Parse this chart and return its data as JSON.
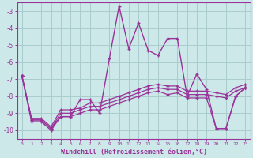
{
  "xlabel": "Windchill (Refroidissement éolien,°C)",
  "background_color": "#cce8e8",
  "grid_color": "#aacccc",
  "line_color": "#993399",
  "xlim": [
    -0.5,
    23.5
  ],
  "ylim": [
    -10.5,
    -2.5
  ],
  "yticks": [
    -10,
    -9,
    -8,
    -7,
    -6,
    -5,
    -4,
    -3
  ],
  "xticks": [
    0,
    1,
    2,
    3,
    4,
    5,
    6,
    7,
    8,
    9,
    10,
    11,
    12,
    13,
    14,
    15,
    16,
    17,
    18,
    19,
    20,
    21,
    22,
    23
  ],
  "y_main": [
    -6.8,
    -9.5,
    -9.5,
    -10.0,
    -9.2,
    -9.2,
    -8.2,
    -8.2,
    -9.0,
    -5.8,
    -2.7,
    -5.2,
    -3.7,
    -5.3,
    -5.6,
    -4.6,
    -4.6,
    -8.0,
    -6.7,
    -7.6,
    -9.9,
    -9.9,
    -8.0,
    -7.5
  ],
  "y_line1": [
    -6.8,
    -9.4,
    -9.4,
    -9.9,
    -9.2,
    -9.2,
    -9.0,
    -8.8,
    -8.8,
    -8.6,
    -8.4,
    -8.2,
    -8.0,
    -7.8,
    -7.7,
    -7.9,
    -7.8,
    -8.1,
    -8.1,
    -8.1,
    -9.9,
    -9.9,
    -8.0,
    -7.5
  ],
  "y_line2": [
    -6.8,
    -9.4,
    -9.4,
    -9.9,
    -9.0,
    -9.0,
    -8.8,
    -8.6,
    -8.6,
    -8.4,
    -8.2,
    -8.0,
    -7.8,
    -7.6,
    -7.5,
    -7.6,
    -7.6,
    -7.9,
    -7.9,
    -7.9,
    -8.0,
    -8.1,
    -7.7,
    -7.5
  ],
  "y_line3": [
    -6.8,
    -9.3,
    -9.3,
    -9.8,
    -8.8,
    -8.8,
    -8.7,
    -8.4,
    -8.4,
    -8.2,
    -8.0,
    -7.8,
    -7.6,
    -7.4,
    -7.3,
    -7.4,
    -7.4,
    -7.7,
    -7.7,
    -7.7,
    -7.8,
    -7.9,
    -7.5,
    -7.3
  ]
}
